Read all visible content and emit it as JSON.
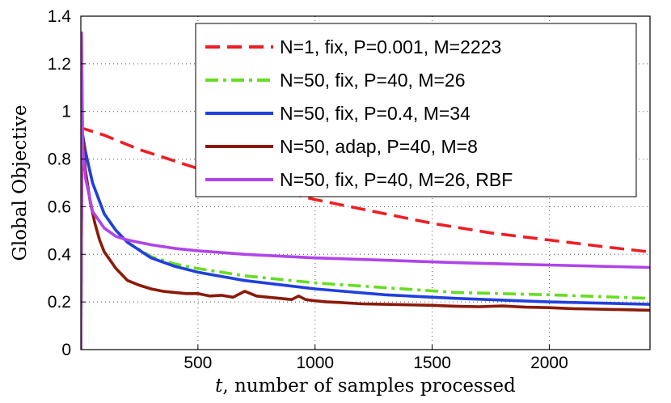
{
  "chart_data": {
    "type": "line",
    "title": "",
    "xlabel_var": "t",
    "xlabel_rest": ", number of samples processed",
    "ylabel": "Global Objective",
    "xlim": [
      0,
      2430
    ],
    "ylim": [
      0,
      1.4
    ],
    "xticks": [
      500,
      1000,
      1500,
      2000
    ],
    "yticks": [
      0,
      0.2,
      0.4,
      0.6,
      0.8,
      1,
      1.2,
      1.4
    ],
    "ytick_labels": [
      "0",
      "0.2",
      "0.4",
      "0.6",
      "0.8",
      "1",
      "1.2",
      "1.4"
    ],
    "grid": true,
    "legend_position": "top-right",
    "series": [
      {
        "name": "N=1, fix, P=0.001, M=2223",
        "color": "#ee1d23",
        "style": "dashed",
        "x": [
          0,
          5,
          100,
          250,
          500,
          750,
          1000,
          1250,
          1500,
          1750,
          2000,
          2250,
          2430
        ],
        "y": [
          0.0,
          0.93,
          0.9,
          0.84,
          0.76,
          0.69,
          0.63,
          0.58,
          0.53,
          0.49,
          0.46,
          0.43,
          0.41
        ]
      },
      {
        "name": "N=50, fix, P=40, M=26",
        "color": "#66dd22",
        "style": "dashdot",
        "x": [
          0,
          5,
          20,
          50,
          100,
          150,
          200,
          300,
          400,
          500,
          700,
          1000,
          1300,
          1600,
          2000,
          2430
        ],
        "y": [
          0.0,
          0.92,
          0.83,
          0.7,
          0.57,
          0.5,
          0.45,
          0.39,
          0.36,
          0.34,
          0.31,
          0.28,
          0.26,
          0.24,
          0.23,
          0.215
        ]
      },
      {
        "name": "N=50, fix, P=0.4, M=34",
        "color": "#2040dd",
        "style": "solid",
        "x": [
          0,
          5,
          20,
          50,
          100,
          150,
          200,
          300,
          400,
          500,
          700,
          1000,
          1300,
          1600,
          2000,
          2430
        ],
        "y": [
          0.0,
          0.92,
          0.83,
          0.7,
          0.57,
          0.5,
          0.45,
          0.385,
          0.35,
          0.325,
          0.29,
          0.255,
          0.23,
          0.215,
          0.2,
          0.19
        ]
      },
      {
        "name": "N=50, adap, P=40, M=8",
        "color": "#8b1a0a",
        "style": "solid",
        "x": [
          0,
          5,
          20,
          40,
          60,
          80,
          100,
          150,
          200,
          250,
          300,
          350,
          400,
          450,
          500,
          550,
          600,
          650,
          700,
          750,
          800,
          850,
          900,
          930,
          960,
          1000,
          1050,
          1100,
          1200,
          1300,
          1400,
          1500,
          1600,
          1700,
          1800,
          1900,
          2000,
          2100,
          2200,
          2300,
          2430
        ],
        "y": [
          0.0,
          0.92,
          0.75,
          0.62,
          0.53,
          0.46,
          0.41,
          0.34,
          0.29,
          0.27,
          0.255,
          0.245,
          0.24,
          0.235,
          0.235,
          0.225,
          0.228,
          0.22,
          0.245,
          0.225,
          0.22,
          0.215,
          0.21,
          0.225,
          0.21,
          0.205,
          0.2,
          0.198,
          0.192,
          0.19,
          0.188,
          0.186,
          0.182,
          0.18,
          0.183,
          0.178,
          0.176,
          0.172,
          0.17,
          0.168,
          0.165
        ]
      },
      {
        "name": "N=50, fix, P=40, M=26, RBF",
        "color": "#b044e8",
        "style": "solid",
        "x": [
          0,
          3,
          8,
          20,
          50,
          100,
          150,
          200,
          300,
          400,
          500,
          700,
          1000,
          1300,
          1600,
          2000,
          2430
        ],
        "y": [
          0.0,
          1.33,
          0.85,
          0.72,
          0.58,
          0.51,
          0.475,
          0.46,
          0.44,
          0.425,
          0.415,
          0.4,
          0.385,
          0.375,
          0.365,
          0.355,
          0.345
        ]
      }
    ]
  }
}
